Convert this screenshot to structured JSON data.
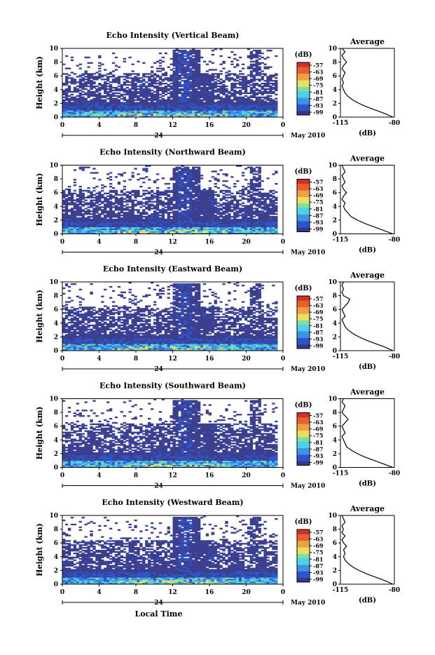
{
  "chart_data": [
    {
      "type": "heatmap",
      "title": "Echo Intensity (Vertical Beam)",
      "ylabel": "Height (km)",
      "xticks": [
        "0",
        "4",
        "8",
        "12",
        "16",
        "20",
        "0"
      ],
      "day_label": "24",
      "month_label": "May 2010",
      "yticks": [
        "0",
        "2",
        "4",
        "6",
        "8",
        "10"
      ],
      "xlim": [
        0,
        24
      ],
      "ylim": [
        0,
        10
      ],
      "colorbar": {
        "unit": "(dB)",
        "ticks": [
          "-57",
          "-63",
          "-69",
          "-75",
          "-81",
          "-87",
          "-93",
          "-99"
        ]
      },
      "profile": {
        "title": "Average",
        "xlabel": "(dB)",
        "xticks": [
          "-115",
          "-80"
        ],
        "yticks": [
          "0",
          "2",
          "4",
          "6",
          "8",
          "10"
        ],
        "xlim": [
          -115,
          -80
        ],
        "ylim": [
          0,
          10
        ],
        "x": [
          -81,
          -86,
          -92,
          -98,
          -103,
          -107,
          -110,
          -112,
          -113,
          -114,
          -113,
          -114,
          -113,
          -112,
          -114,
          -113,
          -111,
          -113,
          -114,
          -112,
          -114
        ],
        "y": [
          0,
          0.5,
          1,
          1.5,
          2,
          2.5,
          3,
          3.5,
          4,
          4.5,
          5,
          5.5,
          6,
          6.5,
          7,
          7.5,
          8,
          8.5,
          9,
          9.5,
          10
        ]
      }
    },
    {
      "type": "heatmap",
      "title": "Echo Intensity (Northward Beam)",
      "ylabel": "Height (km)",
      "xticks": [
        "0",
        "4",
        "8",
        "12",
        "16",
        "20",
        "0"
      ],
      "day_label": "24",
      "month_label": "May 2010",
      "yticks": [
        "0",
        "2",
        "4",
        "6",
        "8",
        "10"
      ],
      "xlim": [
        0,
        24
      ],
      "ylim": [
        0,
        10
      ],
      "colorbar": {
        "unit": "(dB)",
        "ticks": [
          "-57",
          "-63",
          "-69",
          "-75",
          "-81",
          "-87",
          "-93",
          "-99"
        ]
      },
      "profile": {
        "title": "Average",
        "xlabel": "(dB)",
        "xticks": [
          "-115",
          "-80"
        ],
        "yticks": [
          "0",
          "2",
          "4",
          "6",
          "8",
          "10"
        ],
        "xlim": [
          -115,
          -80
        ],
        "ylim": [
          0,
          10
        ],
        "x": [
          -81,
          -87,
          -93,
          -99,
          -104,
          -108,
          -110,
          -112,
          -113,
          -112,
          -114,
          -113,
          -111,
          -113,
          -114,
          -112,
          -113,
          -114,
          -112,
          -113,
          -114
        ],
        "y": [
          0,
          0.5,
          1,
          1.5,
          2,
          2.5,
          3,
          3.5,
          4,
          4.5,
          5,
          5.5,
          6,
          6.5,
          7,
          7.5,
          8,
          8.5,
          9,
          9.5,
          10
        ]
      }
    },
    {
      "type": "heatmap",
      "title": "Echo Intensity (Eastward Beam)",
      "ylabel": "Height (km)",
      "xticks": [
        "0",
        "4",
        "8",
        "12",
        "16",
        "20",
        "0"
      ],
      "day_label": "24",
      "month_label": "May 2010",
      "yticks": [
        "0",
        "2",
        "4",
        "6",
        "8",
        "10"
      ],
      "xlim": [
        0,
        24
      ],
      "ylim": [
        0,
        10
      ],
      "colorbar": {
        "unit": "(dB)",
        "ticks": [
          "-57",
          "-63",
          "-69",
          "-75",
          "-81",
          "-87",
          "-93",
          "-99"
        ]
      },
      "profile": {
        "title": "Average",
        "xlabel": "(dB)",
        "xticks": [
          "-115",
          "-80"
        ],
        "yticks": [
          "0",
          "2",
          "4",
          "6",
          "8",
          "10"
        ],
        "xlim": [
          -115,
          -80
        ],
        "ylim": [
          0,
          10
        ],
        "x": [
          -81,
          -86,
          -92,
          -98,
          -103,
          -107,
          -110,
          -112,
          -113,
          -114,
          -112,
          -113,
          -114,
          -112,
          -110,
          -109,
          -113,
          -114,
          -113,
          -114,
          -113
        ],
        "y": [
          0,
          0.5,
          1,
          1.5,
          2,
          2.5,
          3,
          3.5,
          4,
          4.5,
          5,
          5.5,
          6,
          6.5,
          7,
          7.5,
          8,
          8.5,
          9,
          9.5,
          10
        ]
      }
    },
    {
      "type": "heatmap",
      "title": "Echo Intensity (Southward Beam)",
      "ylabel": "Height (km)",
      "xticks": [
        "0",
        "4",
        "8",
        "12",
        "16",
        "20",
        "0"
      ],
      "day_label": "24",
      "month_label": "May 2010",
      "yticks": [
        "0",
        "2",
        "4",
        "6",
        "8",
        "10"
      ],
      "xlim": [
        0,
        24
      ],
      "ylim": [
        0,
        10
      ],
      "colorbar": {
        "unit": "(dB)",
        "ticks": [
          "-57",
          "-63",
          "-69",
          "-75",
          "-81",
          "-87",
          "-93",
          "-99"
        ]
      },
      "profile": {
        "title": "Average",
        "xlabel": "(dB)",
        "xticks": [
          "-115",
          "-80"
        ],
        "yticks": [
          "0",
          "2",
          "4",
          "6",
          "8",
          "10"
        ],
        "xlim": [
          -115,
          -80
        ],
        "ylim": [
          0,
          10
        ],
        "x": [
          -81,
          -87,
          -93,
          -99,
          -104,
          -108,
          -111,
          -112,
          -113,
          -114,
          -112,
          -113,
          -114,
          -112,
          -110,
          -112,
          -114,
          -113,
          -112,
          -114,
          -113
        ],
        "y": [
          0,
          0.5,
          1,
          1.5,
          2,
          2.5,
          3,
          3.5,
          4,
          4.5,
          5,
          5.5,
          6,
          6.5,
          7,
          7.5,
          8,
          8.5,
          9,
          9.5,
          10
        ]
      }
    },
    {
      "type": "heatmap",
      "title": "Echo Intensity (Westward Beam)",
      "ylabel": "Height (km)",
      "xlabel": "Local Time",
      "xticks": [
        "0",
        "4",
        "8",
        "12",
        "16",
        "20",
        "0"
      ],
      "day_label": "24",
      "month_label": "May 2010",
      "yticks": [
        "0",
        "2",
        "4",
        "6",
        "8",
        "10"
      ],
      "xlim": [
        0,
        24
      ],
      "ylim": [
        0,
        10
      ],
      "colorbar": {
        "unit": "(dB)",
        "ticks": [
          "-57",
          "-63",
          "-69",
          "-75",
          "-81",
          "-87",
          "-93",
          "-99"
        ]
      },
      "profile": {
        "title": "Average",
        "xlabel": "(dB)",
        "xticks": [
          "-115",
          "-80"
        ],
        "yticks": [
          "0",
          "2",
          "4",
          "6",
          "8",
          "10"
        ],
        "xlim": [
          -115,
          -80
        ],
        "ylim": [
          0,
          10
        ],
        "x": [
          -81,
          -86,
          -92,
          -98,
          -103,
          -107,
          -110,
          -112,
          -113,
          -112,
          -113,
          -111,
          -113,
          -114,
          -112,
          -114,
          -113,
          -114,
          -112,
          -113,
          -114
        ],
        "y": [
          0,
          0.5,
          1,
          1.5,
          2,
          2.5,
          3,
          3.5,
          4,
          4.5,
          5,
          5.5,
          6,
          6.5,
          7,
          7.5,
          8,
          8.5,
          9,
          9.5,
          10
        ]
      }
    }
  ],
  "colors": {
    "background_echo": "#3c3f8e",
    "colormap": [
      "#35378c",
      "#2f55c8",
      "#3b94e8",
      "#4fd0e8",
      "#7ee0a0",
      "#e8e060",
      "#f0a040",
      "#e86030",
      "#d03028"
    ]
  }
}
